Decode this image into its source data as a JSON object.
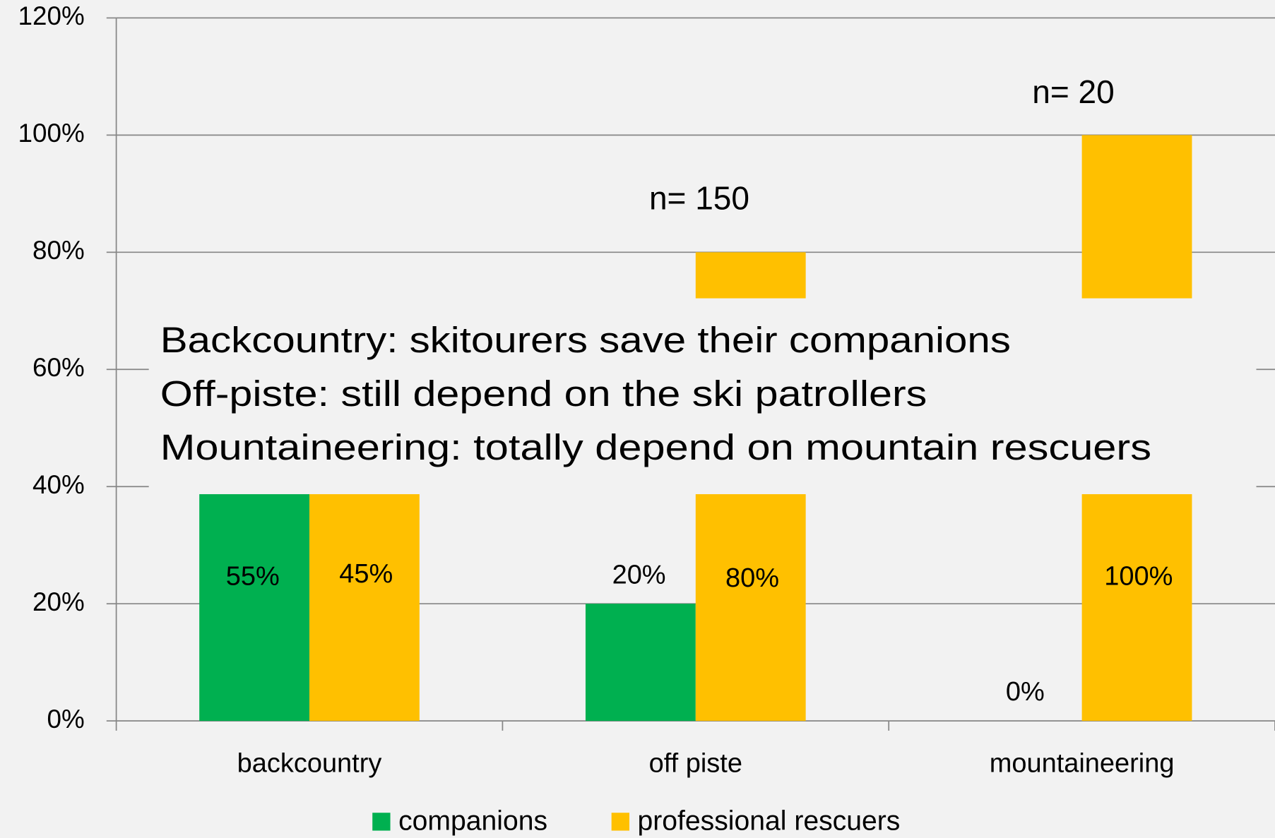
{
  "chart_data": {
    "type": "bar",
    "categories": [
      "backcountry",
      "off piste",
      "mountaineering"
    ],
    "series": [
      {
        "name": "companions",
        "color": "#00b050",
        "values": [
          55,
          20,
          0
        ],
        "value_labels": [
          "55%",
          "20%",
          "0%"
        ]
      },
      {
        "name": "professional rescuers",
        "color": "#ffc000",
        "values": [
          45,
          80,
          100
        ],
        "value_labels": [
          "45%",
          "80%",
          "100%"
        ]
      }
    ],
    "ylim": [
      0,
      120
    ],
    "yticks": [
      {
        "value": 0,
        "label": "0%"
      },
      {
        "value": 20,
        "label": "20%"
      },
      {
        "value": 40,
        "label": "40%"
      },
      {
        "value": 60,
        "label": "60%"
      },
      {
        "value": 80,
        "label": "80%"
      },
      {
        "value": 100,
        "label": "100%"
      },
      {
        "value": 120,
        "label": "120%"
      }
    ],
    "grid": true,
    "legend": "bottom",
    "annotations": [
      "n= 150",
      "n= 20",
      "Backcountry: skitourers save their companions",
      "Off-piste: still depend on the ski patrollers",
      "Mountaineering: totally depend on mountain rescuers"
    ]
  }
}
